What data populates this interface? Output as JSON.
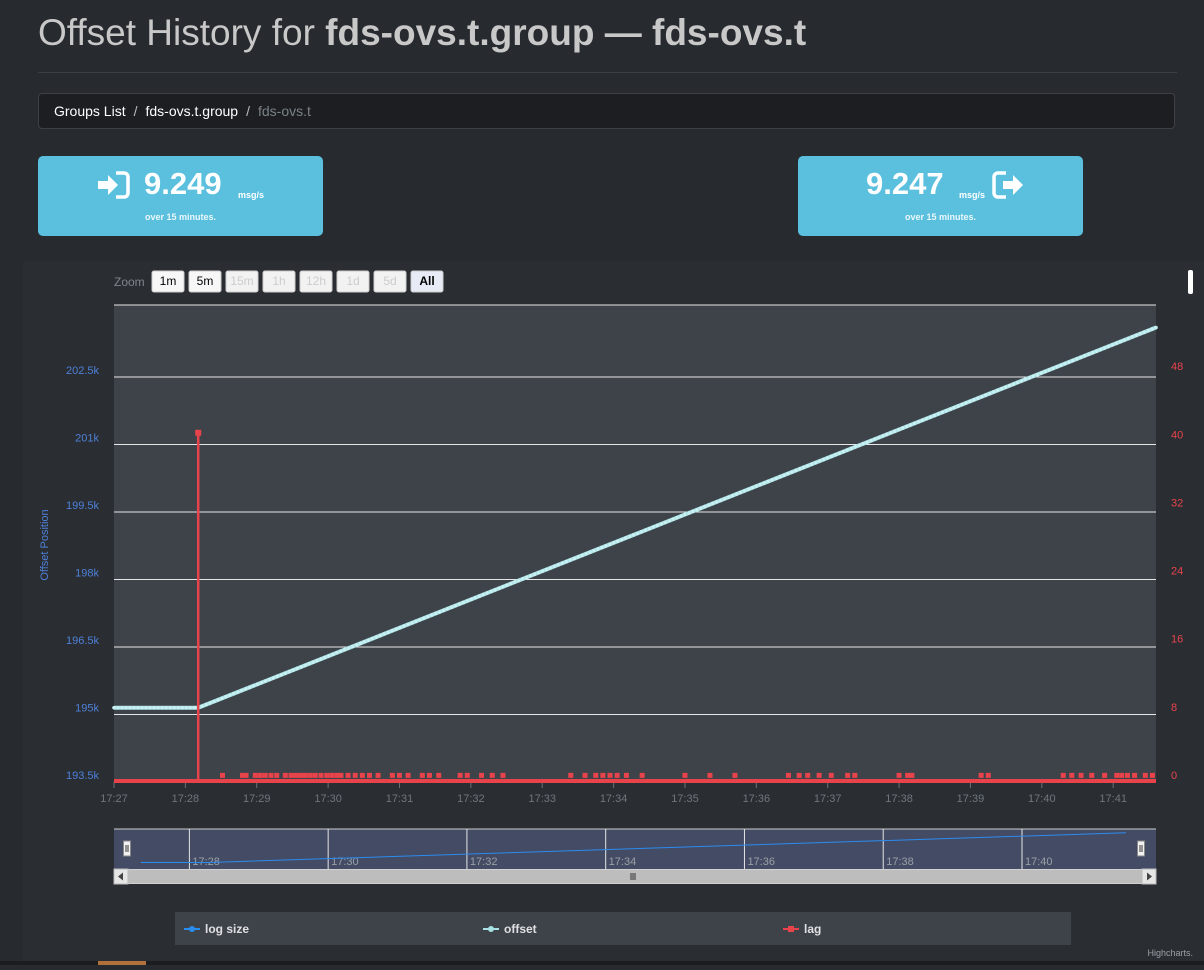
{
  "page": {
    "title_prefix": "Offset History for",
    "group": "fds-ovs.t.group",
    "dash": "—",
    "topic": "fds-ovs.t"
  },
  "breadcrumb": {
    "items": [
      "Groups List",
      "fds-ovs.t.group"
    ],
    "active": "fds-ovs.t"
  },
  "rates": {
    "in": {
      "value": "9.249",
      "unit": "msg/s",
      "sub": "over 15 minutes."
    },
    "out": {
      "value": "9.247",
      "unit": "msg/s",
      "sub": "over 15 minutes."
    }
  },
  "colors": {
    "rate_box": "#5bc0de",
    "log_size": "#2b8cf0",
    "offset": "#a8e1e4",
    "lag": "#e8434b",
    "left_axis": "#4e80d8",
    "right_axis": "#e8434b"
  },
  "zoom": {
    "label": "Zoom",
    "buttons": [
      {
        "label": "1m",
        "enabled": true,
        "selected": false
      },
      {
        "label": "5m",
        "enabled": true,
        "selected": false
      },
      {
        "label": "15m",
        "enabled": false,
        "selected": false
      },
      {
        "label": "1h",
        "enabled": false,
        "selected": false
      },
      {
        "label": "12h",
        "enabled": false,
        "selected": false
      },
      {
        "label": "1d",
        "enabled": false,
        "selected": false
      },
      {
        "label": "5d",
        "enabled": false,
        "selected": false
      },
      {
        "label": "All",
        "enabled": true,
        "selected": true
      }
    ]
  },
  "credits": "Highcharts.",
  "chart_data": {
    "type": "line",
    "x_axis": {
      "ticks": [
        "17:27",
        "17:28",
        "17:29",
        "17:30",
        "17:31",
        "17:32",
        "17:33",
        "17:34",
        "17:35",
        "17:36",
        "17:37",
        "17:38",
        "17:39",
        "17:40",
        "17:41"
      ],
      "min_minutes": 0,
      "max_minutes": 14.6
    },
    "y_left": {
      "title": "Offset Position",
      "ticks": [
        "193.5k",
        "195k",
        "196.5k",
        "198k",
        "199.5k",
        "201k",
        "202.5k"
      ],
      "tick_values": [
        193500,
        195000,
        196500,
        198000,
        199500,
        201000,
        202500
      ],
      "min": 193500,
      "max": 204100
    },
    "y_right": {
      "ticks": [
        "0",
        "8",
        "16",
        "24",
        "32",
        "40",
        "48"
      ],
      "tick_values": [
        0,
        8,
        16,
        24,
        32,
        40,
        48
      ],
      "min": 0,
      "max": 56
    },
    "series": [
      {
        "name": "offset",
        "axis": "left",
        "points": [
          [
            0,
            195150
          ],
          [
            1.18,
            195150
          ],
          [
            14.6,
            203600
          ]
        ]
      },
      {
        "name": "lag",
        "axis": "right",
        "baseline": 0,
        "spike": {
          "x": 1.18,
          "y": 41
        },
        "blip_positions": [
          1.52,
          1.8,
          1.85,
          1.98,
          2.05,
          2.12,
          2.2,
          2.28,
          2.4,
          2.48,
          2.55,
          2.62,
          2.68,
          2.75,
          2.82,
          2.9,
          2.98,
          3.05,
          3.12,
          3.18,
          3.28,
          3.38,
          3.48,
          3.58,
          3.7,
          3.9,
          4.0,
          4.12,
          4.32,
          4.42,
          4.55,
          4.85,
          4.95,
          5.15,
          5.3,
          5.45,
          6.4,
          6.6,
          6.75,
          6.85,
          6.95,
          7.05,
          7.18,
          7.4,
          8.0,
          8.35,
          8.7,
          9.45,
          9.6,
          9.72,
          9.88,
          10.05,
          10.28,
          10.38,
          11.0,
          11.12,
          11.18,
          12.15,
          12.25,
          13.3,
          13.42,
          13.55,
          13.7,
          13.88,
          14.05,
          14.12,
          14.2,
          14.3,
          14.45,
          14.55
        ],
        "blip_height": 0.6
      }
    ],
    "navigator": {
      "ticks": [
        "17:28",
        "17:30",
        "17:32",
        "17:34",
        "17:36",
        "17:38",
        "17:40"
      ],
      "tick_minutes": [
        1,
        3,
        5,
        7,
        9,
        11,
        13
      ],
      "series": {
        "name": "log size",
        "points": [
          [
            0.2,
            0.1
          ],
          [
            1.18,
            0.1
          ],
          [
            14.4,
            0.95
          ]
        ]
      }
    },
    "legend": {
      "position": "bottom",
      "items": [
        {
          "name": "log size",
          "color": "#2b8cf0"
        },
        {
          "name": "offset",
          "color": "#a8e1e4"
        },
        {
          "name": "lag",
          "color": "#e8434b"
        }
      ]
    }
  }
}
